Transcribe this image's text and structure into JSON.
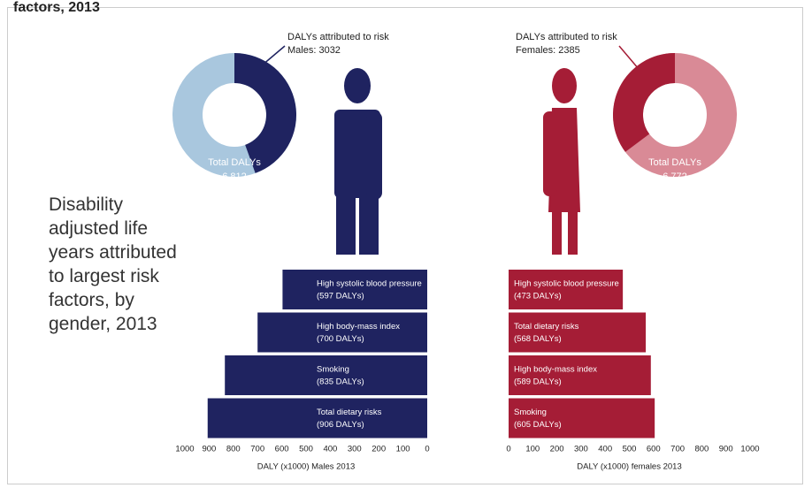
{
  "header": "factors, 2013",
  "title": "Disability\nadjusted life\nyears attributed\nto largest risk\nfactors, by\ngender, 2013",
  "chart_data": [
    {
      "type": "donut",
      "attributed": {
        "label": "DALYs attributed to risk",
        "value_label": "Males: 3032",
        "value": 3032,
        "color": "#1f2360"
      },
      "total": {
        "label": "Total DALYs",
        "value_label": "6,812",
        "value": 6812,
        "color": "#a9c7de"
      }
    },
    {
      "type": "donut",
      "attributed": {
        "label": "DALYs attributed to risk",
        "value_label": "Females: 2385",
        "value": 2385,
        "color": "#a51d36"
      },
      "total": {
        "label": "Total DALYs",
        "value_label": "6,772",
        "value": 6772,
        "color": "#d98a96"
      }
    },
    {
      "type": "bar",
      "x_label": "DALY (x1000) Males 2013",
      "color": "#1f2360",
      "categories": [
        "High systolic blood pressure",
        "High body-mass index",
        "Smoking",
        "Total dietary risks"
      ],
      "values": [
        597,
        700,
        835,
        906
      ],
      "value_labels": [
        "(597 DALYs)",
        "(700 DALYs)",
        "(835 DALYs)",
        "(906 DALYs)"
      ],
      "xlim": [
        1000,
        0
      ],
      "xticks": [
        1000,
        900,
        800,
        700,
        600,
        500,
        400,
        300,
        200,
        100,
        0
      ]
    },
    {
      "type": "bar",
      "x_label": "DALY (x1000) females 2013",
      "color": "#a51d36",
      "categories": [
        "High systolic blood pressure",
        "Total dietary risks",
        "High body-mass index",
        "Smoking"
      ],
      "values": [
        473,
        568,
        589,
        605
      ],
      "value_labels": [
        "(473 DALYs)",
        "(568 DALYs)",
        "(589 DALYs)",
        "(605 DALYs)"
      ],
      "xlim": [
        0,
        1000
      ],
      "xticks": [
        0,
        100,
        200,
        300,
        400,
        500,
        600,
        700,
        800,
        900,
        1000
      ]
    }
  ]
}
